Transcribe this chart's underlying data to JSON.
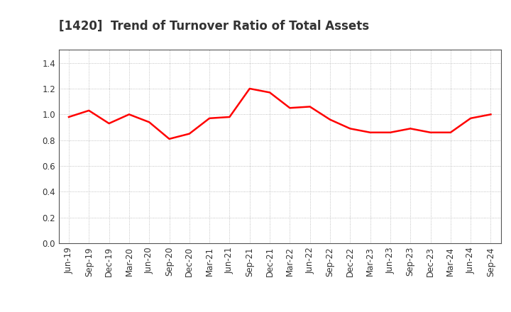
{
  "title": "[1420]  Trend of Turnover Ratio of Total Assets",
  "labels": [
    "Jun-19",
    "Sep-19",
    "Dec-19",
    "Mar-20",
    "Jun-20",
    "Sep-20",
    "Dec-20",
    "Mar-21",
    "Jun-21",
    "Sep-21",
    "Dec-21",
    "Mar-22",
    "Jun-22",
    "Sep-22",
    "Dec-22",
    "Mar-23",
    "Jun-23",
    "Sep-23",
    "Dec-23",
    "Mar-24",
    "Jun-24",
    "Sep-24"
  ],
  "values": [
    0.98,
    1.03,
    0.93,
    1.0,
    0.94,
    0.81,
    0.85,
    0.97,
    0.98,
    1.2,
    1.17,
    1.05,
    1.06,
    0.96,
    0.89,
    0.86,
    0.86,
    0.89,
    0.86,
    0.86,
    0.97,
    1.0
  ],
  "line_color": "#FF0000",
  "line_width": 1.8,
  "ylim": [
    0.0,
    1.5
  ],
  "yticks": [
    0.0,
    0.2,
    0.4,
    0.6,
    0.8,
    1.0,
    1.2,
    1.4
  ],
  "grid_color": "#b0b0b0",
  "background_color": "#ffffff",
  "title_fontsize": 12,
  "title_color": "#333333",
  "tick_fontsize": 8.5,
  "tick_color": "#333333"
}
